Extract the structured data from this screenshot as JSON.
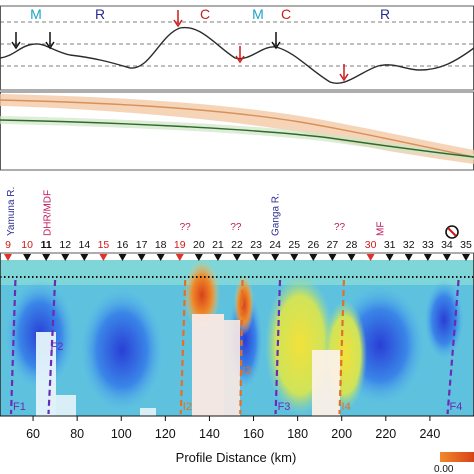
{
  "chart_data": [
    {
      "type": "line",
      "panel": "profile-top",
      "grid": "dashed horizontal reference lines",
      "x": [
        0,
        10,
        20,
        30,
        40,
        55,
        70,
        90,
        110,
        125,
        140,
        150,
        160,
        170,
        180,
        195,
        205,
        215,
        225,
        240,
        255
      ],
      "values": [
        0.35,
        0.6,
        0.45,
        0.5,
        0.7,
        0.55,
        0.45,
        0.35,
        0.2,
        0.3,
        0.78,
        0.85,
        0.75,
        0.55,
        0.4,
        0.45,
        0.55,
        0.35,
        0.25,
        0.05,
        0.2
      ],
      "annotations": {
        "top_labels": [
          {
            "text": "M",
            "x": 36,
            "color": "#1ba3c7"
          },
          {
            "text": "R",
            "x": 100,
            "color": "#2a2d8f"
          },
          {
            "text": "C",
            "x": 205,
            "color": "#cc1b1b"
          },
          {
            "text": "M",
            "x": 258,
            "color": "#1ba3c7"
          },
          {
            "text": "C",
            "x": 286,
            "color": "#cc1b1b"
          },
          {
            "text": "R",
            "x": 385,
            "color": "#2a2d8f"
          }
        ],
        "arrows": [
          {
            "x": 16,
            "color": "#111111"
          },
          {
            "x": 50,
            "color": "#111111"
          },
          {
            "x": 178,
            "color": "#cc1b1b"
          },
          {
            "x": 240,
            "color": "#cc1b1b"
          },
          {
            "x": 276,
            "color": "#111111"
          },
          {
            "x": 344,
            "color": "#cc1b1b"
          }
        ]
      }
    },
    {
      "type": "line",
      "panel": "profile-middle",
      "series": [
        {
          "color": "#d9905a",
          "band_color": "#f0c8a6",
          "x": [
            0,
            100,
            200,
            300,
            380,
            474
          ],
          "values": [
            0.85,
            0.82,
            0.8,
            0.72,
            0.45,
            0.25
          ]
        },
        {
          "color": "#2e6b2a",
          "band_color": "#cfe6c6",
          "x": [
            0,
            100,
            200,
            300,
            380,
            474
          ],
          "values": [
            0.68,
            0.67,
            0.64,
            0.58,
            0.45,
            0.35
          ]
        }
      ]
    },
    {
      "type": "heatmap",
      "panel": "cross-section",
      "xlabel": "Profile Distance (km)",
      "xlim": [
        45,
        260
      ],
      "xticks": [
        60,
        80,
        100,
        120,
        140,
        160,
        180,
        200,
        220,
        240
      ],
      "rivers": [
        {
          "text": "Yamuna R.",
          "x": 50
        },
        {
          "text": "Ganga R.",
          "x": 170
        }
      ],
      "structure_labels": [
        {
          "text": "DHR/MDF",
          "x": 68,
          "color": "#c2185b"
        },
        {
          "text": "??",
          "x": 129,
          "color": "#c2185b"
        },
        {
          "text": "??",
          "x": 152,
          "color": "#c2185b"
        },
        {
          "text": "??",
          "x": 199,
          "color": "#c2185b"
        },
        {
          "text": "MF",
          "x": 219,
          "color": "#c2185b"
        }
      ],
      "stations": [
        {
          "label": "9",
          "color": "#cc1b1b",
          "marker": "red"
        },
        {
          "label": "10",
          "color": "#cc1b1b",
          "marker": "black"
        },
        {
          "label": "11",
          "color": "#111111",
          "marker": "black",
          "bold": true
        },
        {
          "label": "12",
          "color": "#111111",
          "marker": "black"
        },
        {
          "label": "14",
          "color": "#111111",
          "marker": "black"
        },
        {
          "label": "15",
          "color": "#cc1b1b",
          "marker": "red"
        },
        {
          "label": "16",
          "color": "#111111",
          "marker": "black"
        },
        {
          "label": "17",
          "color": "#111111",
          "marker": "black"
        },
        {
          "label": "18",
          "color": "#111111",
          "marker": "black"
        },
        {
          "label": "19",
          "color": "#cc1b1b",
          "marker": "red"
        },
        {
          "label": "20",
          "color": "#111111",
          "marker": "black"
        },
        {
          "label": "21",
          "color": "#111111",
          "marker": "black"
        },
        {
          "label": "22",
          "color": "#111111",
          "marker": "black"
        },
        {
          "label": "23",
          "color": "#111111",
          "marker": "black"
        },
        {
          "label": "24",
          "color": "#111111",
          "marker": "black"
        },
        {
          "label": "25",
          "color": "#111111",
          "marker": "black"
        },
        {
          "label": "26",
          "color": "#111111",
          "marker": "black"
        },
        {
          "label": "27",
          "color": "#111111",
          "marker": "black"
        },
        {
          "label": "28",
          "color": "#111111",
          "marker": "black"
        },
        {
          "label": "30",
          "color": "#cc1b1b",
          "marker": "red"
        },
        {
          "label": "31",
          "color": "#111111",
          "marker": "black"
        },
        {
          "label": "32",
          "color": "#111111",
          "marker": "black"
        },
        {
          "label": "33",
          "color": "#111111",
          "marker": "black"
        },
        {
          "label": "34",
          "color": "#111111",
          "marker": "black"
        },
        {
          "label": "35",
          "color": "#111111",
          "marker": "black"
        }
      ],
      "faults": [
        {
          "label": "F1",
          "x_top": 52,
          "x_bot": 50,
          "color": "#6a2bb5"
        },
        {
          "label": "F2",
          "x_top": 70,
          "x_bot": 67,
          "color": "#6a2bb5"
        },
        {
          "label": "I2",
          "x_top": 129,
          "x_bot": 127,
          "color": "#e0702a"
        },
        {
          "label": "I3",
          "x_top": 155,
          "x_bot": 154,
          "color": "#e0702a"
        },
        {
          "label": "F3",
          "x_top": 172,
          "x_bot": 170,
          "color": "#6a2bb5"
        },
        {
          "label": "I4",
          "x_top": 201,
          "x_bot": 199,
          "color": "#e0702a"
        },
        {
          "label": "F4",
          "x_top": 253,
          "x_bot": 248,
          "color": "#6a2bb5"
        }
      ],
      "colorbar_label": "0.00"
    }
  ]
}
